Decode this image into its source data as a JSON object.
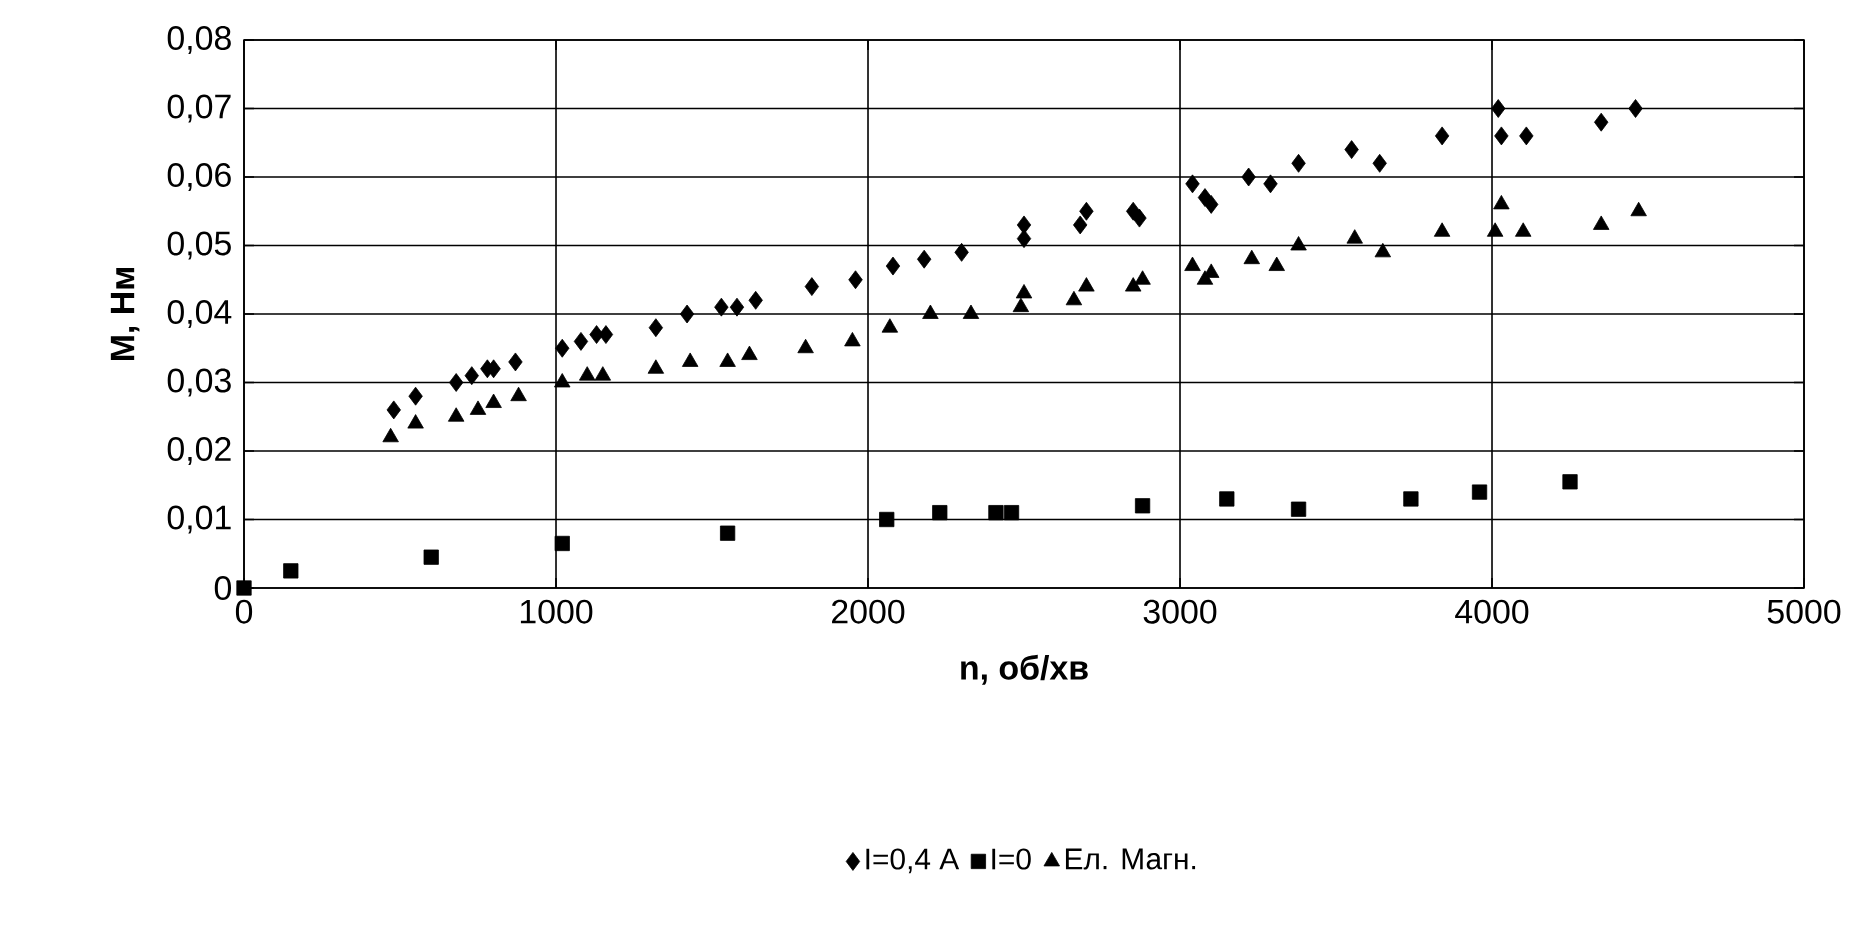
{
  "chart_data": {
    "type": "scatter",
    "xlabel": "n, об/хв",
    "ylabel": "М, Нм",
    "xlim": [
      0,
      5000
    ],
    "xticks": [
      0,
      1000,
      2000,
      3000,
      4000,
      5000
    ],
    "ylim": [
      0,
      0.08
    ],
    "yticks": [
      0,
      {
        "value": 0.01,
        "label": "0,01"
      },
      {
        "value": 0.02,
        "label": "0,02"
      },
      {
        "value": 0.03,
        "label": "0,03"
      },
      {
        "value": 0.04,
        "label": "0,04"
      },
      {
        "value": 0.05,
        "label": "0,05"
      },
      {
        "value": 0.06,
        "label": "0,06"
      },
      {
        "value": 0.07,
        "label": "0,07"
      },
      {
        "value": 0.08,
        "label": "0,08"
      }
    ],
    "grid": true,
    "legend": "bottom",
    "series": [
      {
        "name": "I=0,4 A",
        "color": "#000000",
        "marker": "diamond",
        "x": [
          480,
          550,
          680,
          730,
          780,
          800,
          870,
          1020,
          1080,
          1130,
          1160,
          1320,
          1420,
          1530,
          1580,
          1640,
          1820,
          1960,
          2080,
          2180,
          2300,
          2500,
          2500,
          2680,
          2700,
          2850,
          2870,
          3040,
          3080,
          3100,
          3220,
          3290,
          3380,
          3550,
          3640,
          3840,
          4020,
          4030,
          4110,
          4350,
          4460
        ],
        "values": [
          0.026,
          0.028,
          0.03,
          0.031,
          0.032,
          0.032,
          0.033,
          0.035,
          0.036,
          0.037,
          0.037,
          0.038,
          0.04,
          0.041,
          0.041,
          0.042,
          0.044,
          0.045,
          0.047,
          0.048,
          0.049,
          0.051,
          0.053,
          0.053,
          0.055,
          0.055,
          0.054,
          0.059,
          0.057,
          0.056,
          0.06,
          0.059,
          0.062,
          0.064,
          0.062,
          0.066,
          0.07,
          0.066,
          0.066,
          0.068,
          0.07
        ]
      },
      {
        "name": "I=0",
        "color": "#000000",
        "marker": "square",
        "x": [
          0,
          150,
          600,
          1020,
          1550,
          2060,
          2230,
          2410,
          2460,
          2880,
          3150,
          3380,
          3740,
          3960,
          4250
        ],
        "values": [
          0.0,
          0.0025,
          0.0045,
          0.0065,
          0.008,
          0.01,
          0.011,
          0.011,
          0.011,
          0.012,
          0.013,
          0.0115,
          0.013,
          0.014,
          0.0155
        ]
      },
      {
        "name": "Ел. Магн.",
        "color": "#000000",
        "marker": "triangle",
        "x": [
          470,
          550,
          680,
          750,
          800,
          880,
          1020,
          1100,
          1150,
          1320,
          1430,
          1550,
          1620,
          1800,
          1950,
          2070,
          2200,
          2330,
          2490,
          2500,
          2660,
          2700,
          2850,
          2880,
          3040,
          3080,
          3100,
          3230,
          3310,
          3380,
          3560,
          3650,
          3840,
          4010,
          4030,
          4100,
          4350,
          4470
        ],
        "values": [
          0.022,
          0.024,
          0.025,
          0.026,
          0.027,
          0.028,
          0.03,
          0.031,
          0.031,
          0.032,
          0.033,
          0.033,
          0.034,
          0.035,
          0.036,
          0.038,
          0.04,
          0.04,
          0.041,
          0.043,
          0.042,
          0.044,
          0.044,
          0.045,
          0.047,
          0.045,
          0.046,
          0.048,
          0.047,
          0.05,
          0.051,
          0.049,
          0.052,
          0.052,
          0.056,
          0.052,
          0.053,
          0.055
        ]
      }
    ]
  }
}
